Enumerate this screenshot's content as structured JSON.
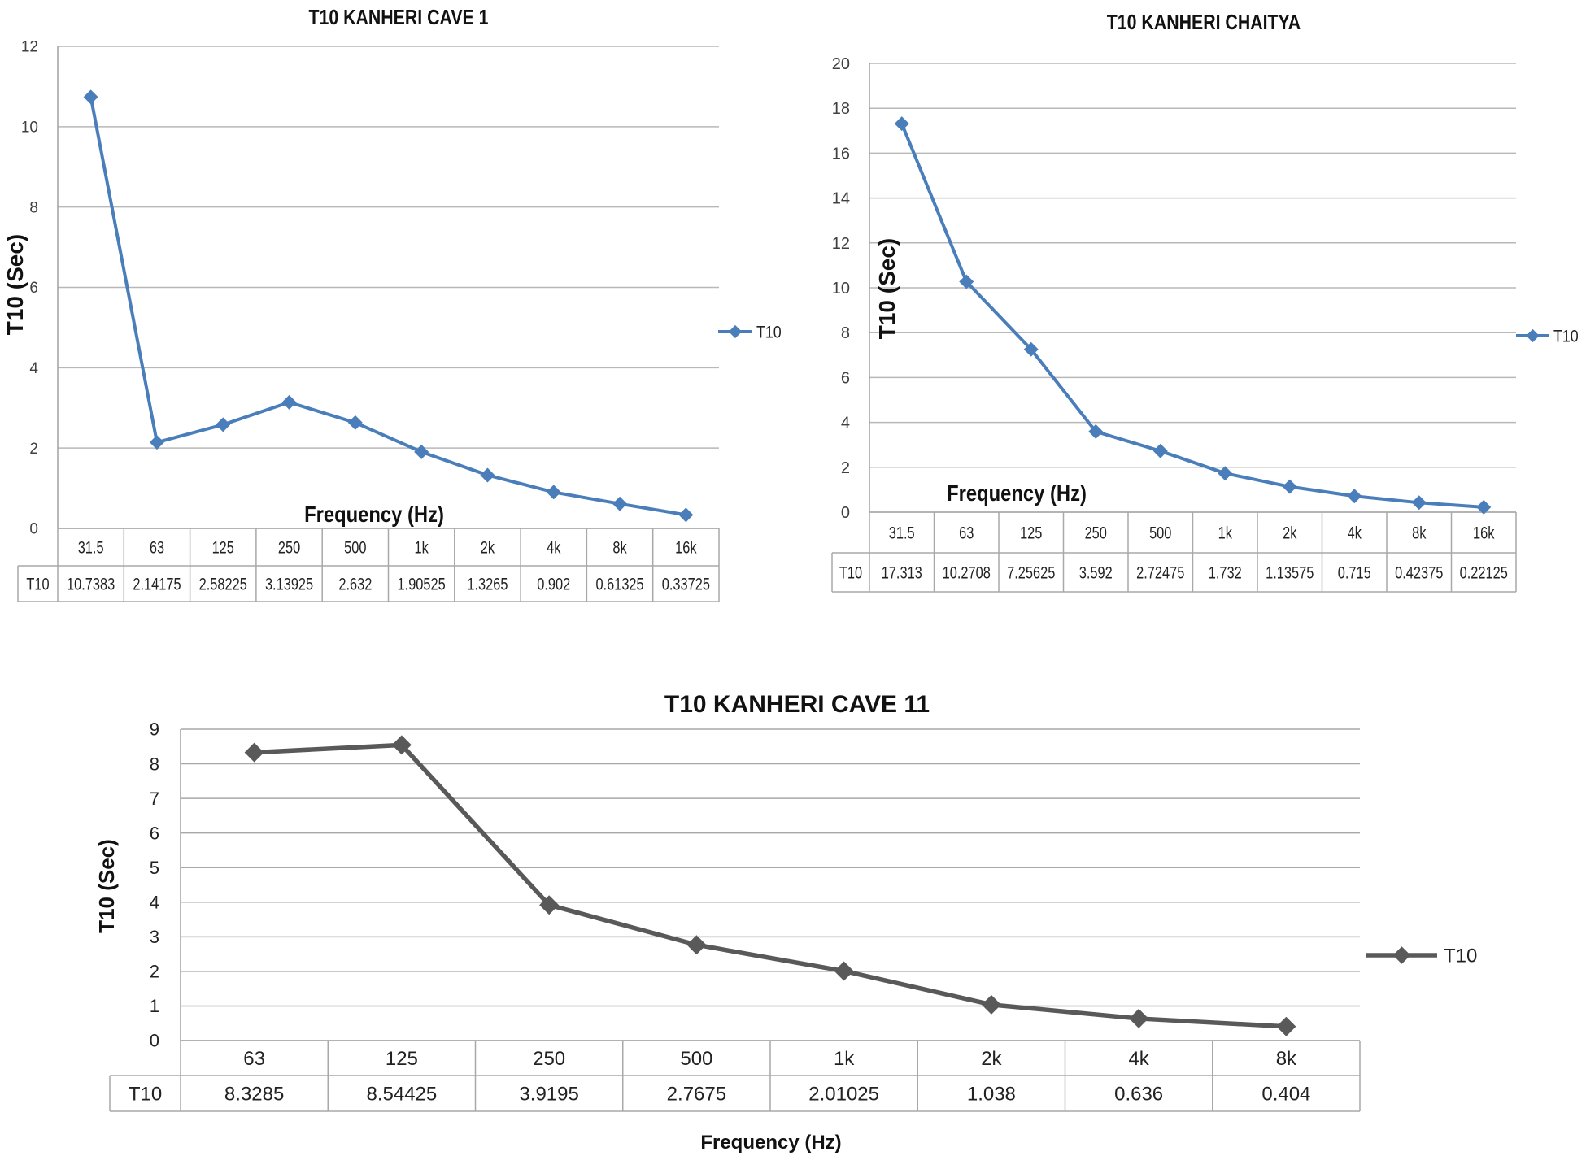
{
  "chart_data": [
    {
      "id": "cave1",
      "type": "line",
      "title": "T10 KANHERI CAVE 1",
      "xlabel": "Frequency (Hz)",
      "ylabel": "T10 (Sec)",
      "categories": [
        "31.5",
        "63",
        "125",
        "250",
        "500",
        "1k",
        "2k",
        "4k",
        "8k",
        "16k"
      ],
      "series": [
        {
          "name": "T10",
          "values": [
            10.7383,
            2.14175,
            2.58225,
            3.13925,
            2.632,
            1.90525,
            1.3265,
            0.902,
            0.61325,
            0.33725
          ],
          "value_labels": [
            "10.7383",
            "2.14175",
            "2.58225",
            "3.13925",
            "2.632",
            "1.90525",
            "1.3265",
            "0.902",
            "0.61325",
            "0.33725"
          ]
        }
      ],
      "yticks": [
        "0",
        "2",
        "4",
        "6",
        "8",
        "10",
        "12"
      ],
      "ylim": [
        0,
        12
      ],
      "table_row_label": "T10",
      "legend": "right",
      "grid": true,
      "color": "#4a7ebb"
    },
    {
      "id": "chaitya",
      "type": "line",
      "title": "T10 KANHERI CHAITYA",
      "xlabel": "Frequency (Hz)",
      "ylabel": "T10 (Sec)",
      "categories": [
        "31.5",
        "63",
        "125",
        "250",
        "500",
        "1k",
        "2k",
        "4k",
        "8k",
        "16k"
      ],
      "series": [
        {
          "name": "T10",
          "values": [
            17.313,
            10.2708,
            7.25625,
            3.592,
            2.72475,
            1.732,
            1.13575,
            0.715,
            0.42375,
            0.22125
          ],
          "value_labels": [
            "17.313",
            "10.2708",
            "7.25625",
            "3.592",
            "2.72475",
            "1.732",
            "1.13575",
            "0.715",
            "0.42375",
            "0.22125"
          ]
        }
      ],
      "yticks": [
        "0",
        "2",
        "4",
        "6",
        "8",
        "10",
        "12",
        "14",
        "16",
        "18",
        "20"
      ],
      "ylim": [
        0,
        20
      ],
      "table_row_label": "T10",
      "legend": "right",
      "grid": true,
      "color": "#4a7ebb"
    },
    {
      "id": "cave11",
      "type": "line",
      "title": "T10 KANHERI CAVE 11",
      "xlabel": "Frequency (Hz)",
      "ylabel": "T10 (Sec)",
      "categories": [
        "63",
        "125",
        "250",
        "500",
        "1k",
        "2k",
        "4k",
        "8k"
      ],
      "series": [
        {
          "name": "T10",
          "values": [
            8.3285,
            8.54425,
            3.9195,
            2.7675,
            2.01025,
            1.038,
            0.636,
            0.404
          ],
          "value_labels": [
            "8.3285",
            "8.54425",
            "3.9195",
            "2.7675",
            "2.01025",
            "1.038",
            "0.636",
            "0.404"
          ]
        }
      ],
      "yticks": [
        "0",
        "1",
        "2",
        "3",
        "4",
        "5",
        "6",
        "7",
        "8",
        "9"
      ],
      "ylim": [
        0,
        9
      ],
      "table_row_label": "T10",
      "legend": "right",
      "grid": true,
      "color": "#595959"
    }
  ]
}
